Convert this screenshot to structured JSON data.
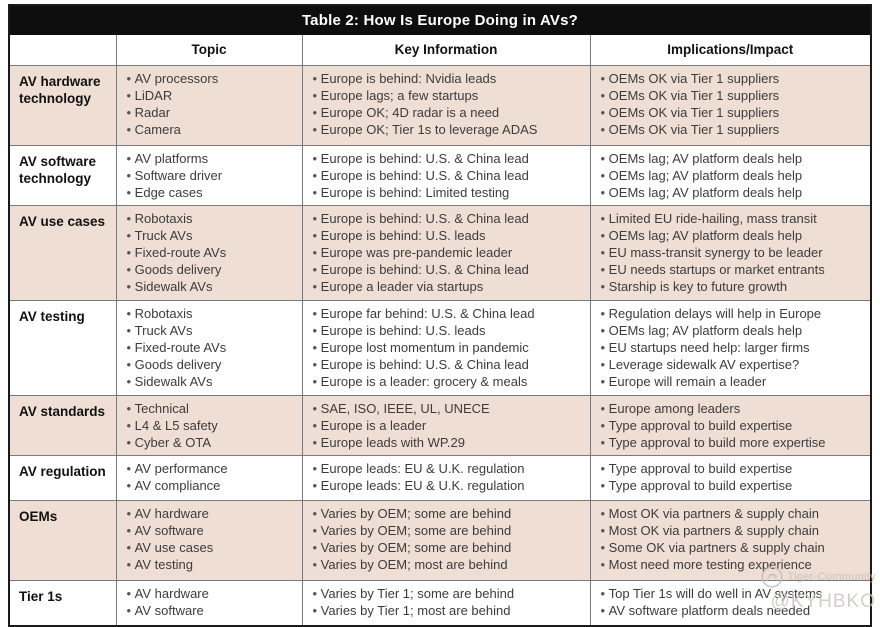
{
  "title": "Table 2: How Is Europe Doing in AVs?",
  "columns": [
    "",
    "Topic",
    "Key Information",
    "Implications/Impact"
  ],
  "colors": {
    "title_bg": "#0e0e0e",
    "shaded_row": "#efded4",
    "grid_line": "#7a7a7a",
    "outer_border": "#1a1a1a",
    "body_text": "#3c3c3c"
  },
  "rows": [
    {
      "label": "AV hardware technology",
      "shaded": true,
      "topic": [
        "AV processors",
        "LiDAR",
        "Radar",
        "Camera"
      ],
      "key_info": [
        "Europe is behind: Nvidia leads",
        "Europe lags; a few startups",
        "Europe OK; 4D radar is a need",
        "Europe OK; Tier 1s to leverage ADAS"
      ],
      "implications": [
        "OEMs OK via Tier 1 suppliers",
        "OEMs OK via Tier 1 suppliers",
        "OEMs OK via Tier 1 suppliers",
        "OEMs OK via Tier 1 suppliers"
      ]
    },
    {
      "label": "AV software technology",
      "shaded": false,
      "topic": [
        "AV platforms",
        "Software driver",
        "Edge cases"
      ],
      "key_info": [
        "Europe is behind: U.S. & China lead",
        "Europe is behind: U.S. & China lead",
        "Europe is behind: Limited testing"
      ],
      "implications": [
        "OEMs lag; AV platform deals help",
        "OEMs lag; AV platform deals help",
        "OEMs lag; AV platform deals help"
      ]
    },
    {
      "label": "AV use cases",
      "shaded": true,
      "topic": [
        "Robotaxis",
        "Truck AVs",
        "Fixed-route AVs",
        "Goods delivery",
        "Sidewalk AVs"
      ],
      "key_info": [
        "Europe is behind: U.S. & China lead",
        "Europe is behind: U.S. leads",
        "Europe was pre-pandemic leader",
        "Europe is behind: U.S. & China lead",
        "Europe a leader via startups"
      ],
      "implications": [
        "Limited EU ride-hailing, mass transit",
        "OEMs lag; AV platform deals help",
        "EU mass-transit synergy to be leader",
        "EU needs startups or market entrants",
        "Starship is key to future growth"
      ]
    },
    {
      "label": "AV testing",
      "shaded": false,
      "topic": [
        "Robotaxis",
        "Truck AVs",
        "Fixed-route AVs",
        "Goods delivery",
        "Sidewalk AVs"
      ],
      "key_info": [
        "Europe far behind: U.S. & China lead",
        "Europe is behind: U.S. leads",
        "Europe lost momentum in pandemic",
        "Europe is behind: U.S. & China lead",
        "Europe is a leader: grocery & meals"
      ],
      "implications": [
        "Regulation delays will help in Europe",
        "OEMs lag; AV platform deals help",
        "EU startups need help: larger firms",
        "Leverage sidewalk AV expertise?",
        "Europe will remain a leader"
      ]
    },
    {
      "label": "AV standards",
      "shaded": true,
      "topic": [
        "Technical",
        "L4 & L5 safety",
        "Cyber & OTA"
      ],
      "key_info": [
        "SAE, ISO, IEEE, UL, UNECE",
        "Europe is a leader",
        "Europe leads with WP.29"
      ],
      "implications": [
        "Europe among leaders",
        "Type approval to build expertise",
        "Type approval to build more expertise"
      ]
    },
    {
      "label": "AV regulation",
      "shaded": false,
      "topic": [
        "AV performance",
        "AV compliance"
      ],
      "key_info": [
        "Europe leads: EU & U.K. regulation",
        "Europe leads: EU & U.K. regulation"
      ],
      "implications": [
        "Type approval to build expertise",
        "Type approval to build expertise"
      ]
    },
    {
      "label": "OEMs",
      "shaded": true,
      "topic": [
        "AV hardware",
        "AV software",
        "AV use cases",
        "AV testing"
      ],
      "key_info": [
        "Varies by OEM; some are behind",
        "Varies by OEM; some are behind",
        "Varies by OEM; some are behind",
        "Varies by OEM; most are behind"
      ],
      "implications": [
        "Most OK via partners & supply chain",
        "Most OK via partners & supply chain",
        "Some OK via partners & supply chain",
        "Most need more testing experience"
      ]
    },
    {
      "label": "Tier 1s",
      "shaded": false,
      "topic": [
        "AV hardware",
        "AV software"
      ],
      "key_info": [
        "Varies by Tier 1; some are behind",
        "Varies by Tier 1; most are behind"
      ],
      "implications": [
        "Top Tier 1s will do well in AV systems",
        "AV software platform deals needed"
      ]
    }
  ],
  "watermark": {
    "community": "Tiger-Community",
    "handle": "@KYHBKO"
  }
}
